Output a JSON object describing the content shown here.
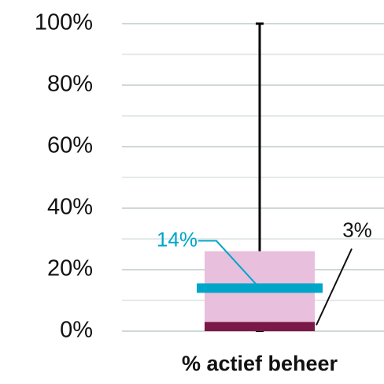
{
  "chart_data": {
    "type": "box",
    "categories": [
      "% actief beheer"
    ],
    "boxes": [
      {
        "min": 0,
        "q1": 0,
        "median": 3,
        "q3": 26,
        "max": 100,
        "mean": 14,
        "value_labels": {
          "mean": "14%",
          "median": "3%"
        }
      }
    ],
    "box_color": "#e8bfdc",
    "median_color": "#7b1848",
    "mean_color": "#00a6c9",
    "whisker_color": "#000000",
    "ylim": [
      0,
      100
    ],
    "yticks": [
      {
        "value": 0,
        "label": "0%"
      },
      {
        "value": 20,
        "label": "20%"
      },
      {
        "value": 40,
        "label": "40%"
      },
      {
        "value": 60,
        "label": "60%"
      },
      {
        "value": 80,
        "label": "80%"
      },
      {
        "value": 100,
        "label": "100%"
      }
    ],
    "minor_yticks": [
      10,
      30,
      50,
      70,
      90
    ],
    "grid": true
  }
}
